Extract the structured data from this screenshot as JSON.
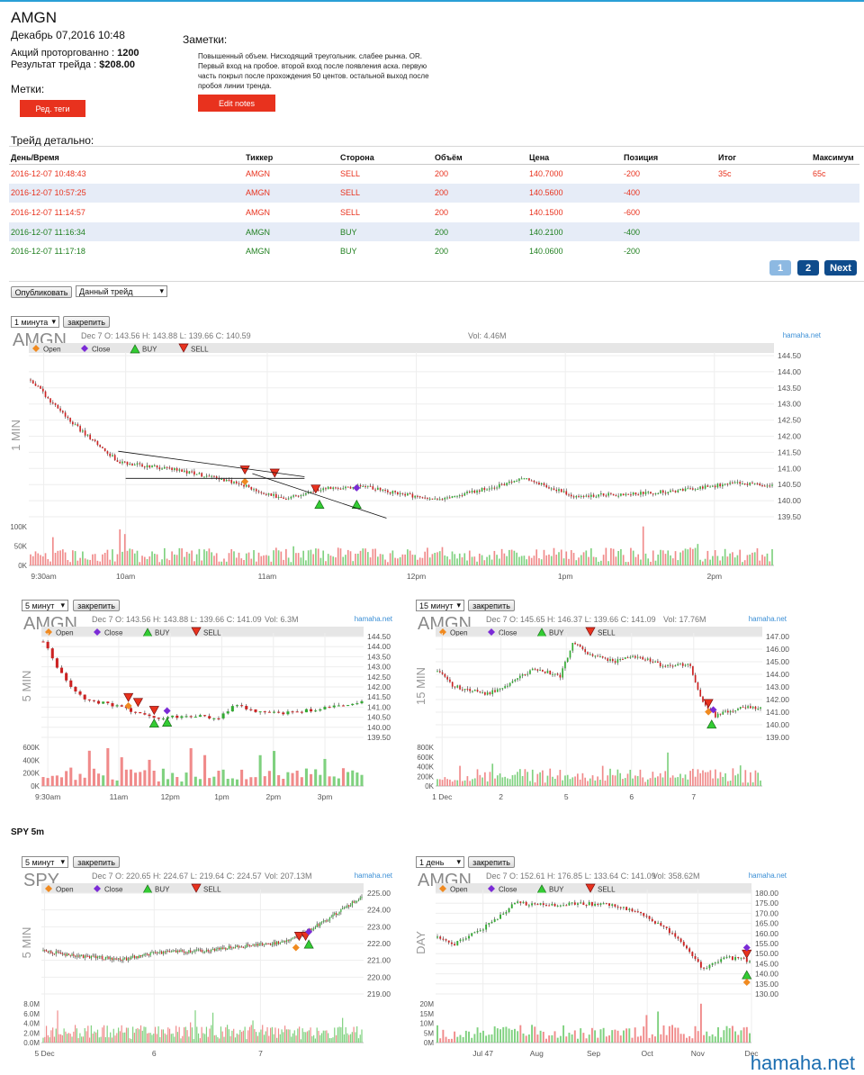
{
  "header": {
    "ticker": "AMGN",
    "date": "Декабрь 07,2016 10:48",
    "shares_label": "Акций проторгованно :",
    "shares_value": "1200",
    "result_label": "Результат трейда :",
    "result_value": "$208.00",
    "tags_label": "Метки:",
    "tags_button": "Ред. теги",
    "notes_label": "Заметки:",
    "notes_text": "Повышенный объем. Нисходящий треугольник. слабее рынка. OR. Первый вход на пробое. второй вход после появления аска. первую часть покрыл после прохождения 50 центов. остальной выход после пробоя линии тренда.",
    "notes_button": "Edit notes"
  },
  "trades": {
    "title": "Трейд детально:",
    "columns": [
      "День/Время",
      "Тиккер",
      "Сторона",
      "Объём",
      "Цена",
      "Позиция",
      "Итог",
      "Максимум"
    ],
    "rows": [
      {
        "time": "2016-12-07 10:48:43",
        "ticker": "AMGN",
        "side": "SELL",
        "volume": "200",
        "price": "140.7000",
        "position": "-200",
        "result": "35c",
        "max": "65c"
      },
      {
        "time": "2016-12-07 10:57:25",
        "ticker": "AMGN",
        "side": "SELL",
        "volume": "200",
        "price": "140.5600",
        "position": "-400",
        "result": "",
        "max": ""
      },
      {
        "time": "2016-12-07 11:14:57",
        "ticker": "AMGN",
        "side": "SELL",
        "volume": "200",
        "price": "140.1500",
        "position": "-600",
        "result": "",
        "max": ""
      },
      {
        "time": "2016-12-07 11:16:34",
        "ticker": "AMGN",
        "side": "BUY",
        "volume": "200",
        "price": "140.2100",
        "position": "-400",
        "result": "",
        "max": ""
      },
      {
        "time": "2016-12-07 11:17:18",
        "ticker": "AMGN",
        "side": "BUY",
        "volume": "200",
        "price": "140.0600",
        "position": "-200",
        "result": "",
        "max": ""
      }
    ]
  },
  "pager": {
    "page1": "1",
    "page2": "2",
    "next": "Next"
  },
  "publish": {
    "button": "Опубликовать",
    "select": "Данный трейд"
  },
  "legend": {
    "open": "Open",
    "close": "Close",
    "buy": "BUY",
    "sell": "SELL"
  },
  "pin_label": "закрепить",
  "spy_title": "SPY 5m",
  "watermark": "hamaha.net",
  "colors": {
    "up": "#33aa33",
    "down": "#cc2222",
    "volume_up": "#7fd17f",
    "volume_down": "#f08a8a",
    "sell_marker": "#e8321e",
    "buy_marker": "#33cc33",
    "open_marker": "#f08a20",
    "close_marker": "#7b2bd6"
  },
  "charts": [
    {
      "id": "c1",
      "interval": "1 минута",
      "symbol": "AMGN",
      "period_label": "1 MIN",
      "brand": "hamaha.net",
      "ohlc": "Dec 7 O: 143.56 H: 143.88 L: 139.66 C: 140.59",
      "vol": "Vol: 4.46M",
      "yticks": [
        "144.50",
        "144.00",
        "143.50",
        "143.00",
        "142.50",
        "142.00",
        "141.50",
        "141.00",
        "140.50",
        "140.00",
        "139.50"
      ],
      "vticks": [
        "100K",
        "50K",
        "0K"
      ],
      "xticks": [
        "9:30am",
        "10am",
        "11am",
        "12pm",
        "1pm",
        "2pm"
      ]
    },
    {
      "id": "c2",
      "interval": "5 минут",
      "symbol": "AMGN",
      "period_label": "5 MIN",
      "brand": "hamaha.net",
      "ohlc": "Dec 7 O: 143.56 H: 143.88 L: 139.66 C: 141.09",
      "vol": "Vol: 6.3M",
      "yticks": [
        "144.50",
        "144.00",
        "143.50",
        "143.00",
        "142.50",
        "142.00",
        "141.50",
        "141.00",
        "140.50",
        "140.00",
        "139.50"
      ],
      "vticks": [
        "600K",
        "400K",
        "200K",
        "0K"
      ],
      "xticks": [
        "9:30am",
        "11am",
        "12pm",
        "1pm",
        "2pm",
        "3pm"
      ]
    },
    {
      "id": "c3",
      "interval": "15 минут",
      "symbol": "AMGN",
      "period_label": "15 MIN",
      "brand": "hamaha.net",
      "ohlc": "Dec 7 O: 145.65 H: 146.37 L: 139.66 C: 141.09",
      "vol": "Vol: 17.76M",
      "yticks": [
        "147.00",
        "146.00",
        "145.00",
        "144.00",
        "143.00",
        "142.00",
        "141.00",
        "140.00",
        "139.00"
      ],
      "vticks": [
        "800K",
        "600K",
        "400K",
        "200K",
        "0K"
      ],
      "xticks": [
        "1 Dec",
        "2",
        "5",
        "6",
        "7"
      ]
    },
    {
      "id": "c4",
      "interval": "5 минут",
      "symbol": "SPY",
      "period_label": "5 MIN",
      "brand": "hamaha.net",
      "ohlc": "Dec 7 O: 220.65 H: 224.67 L: 219.64 C: 224.57",
      "vol": "Vol: 207.13M",
      "yticks": [
        "225.00",
        "224.00",
        "223.00",
        "222.00",
        "221.00",
        "220.00",
        "219.00"
      ],
      "vticks": [
        "8.0M",
        "6.0M",
        "4.0M",
        "2.0M",
        "0.0M"
      ],
      "xticks": [
        "5 Dec",
        "6",
        "7"
      ]
    },
    {
      "id": "c5",
      "interval": "1 день",
      "symbol": "AMGN",
      "period_label": "DAY",
      "brand": "hamaha.net",
      "ohlc": "Dec 7 O: 152.61 H: 176.85 L: 133.64 C: 141.09",
      "vol": "Vol: 358.62M",
      "yticks": [
        "180.00",
        "175.00",
        "170.00",
        "165.00",
        "160.00",
        "155.00",
        "150.00",
        "145.00",
        "140.00",
        "135.00",
        "130.00"
      ],
      "vticks": [
        "20M",
        "15M",
        "10M",
        "5M",
        "0M"
      ],
      "xticks": [
        "Jul 47",
        "Aug",
        "Sep",
        "Oct",
        "Nov",
        "Dec"
      ]
    }
  ]
}
